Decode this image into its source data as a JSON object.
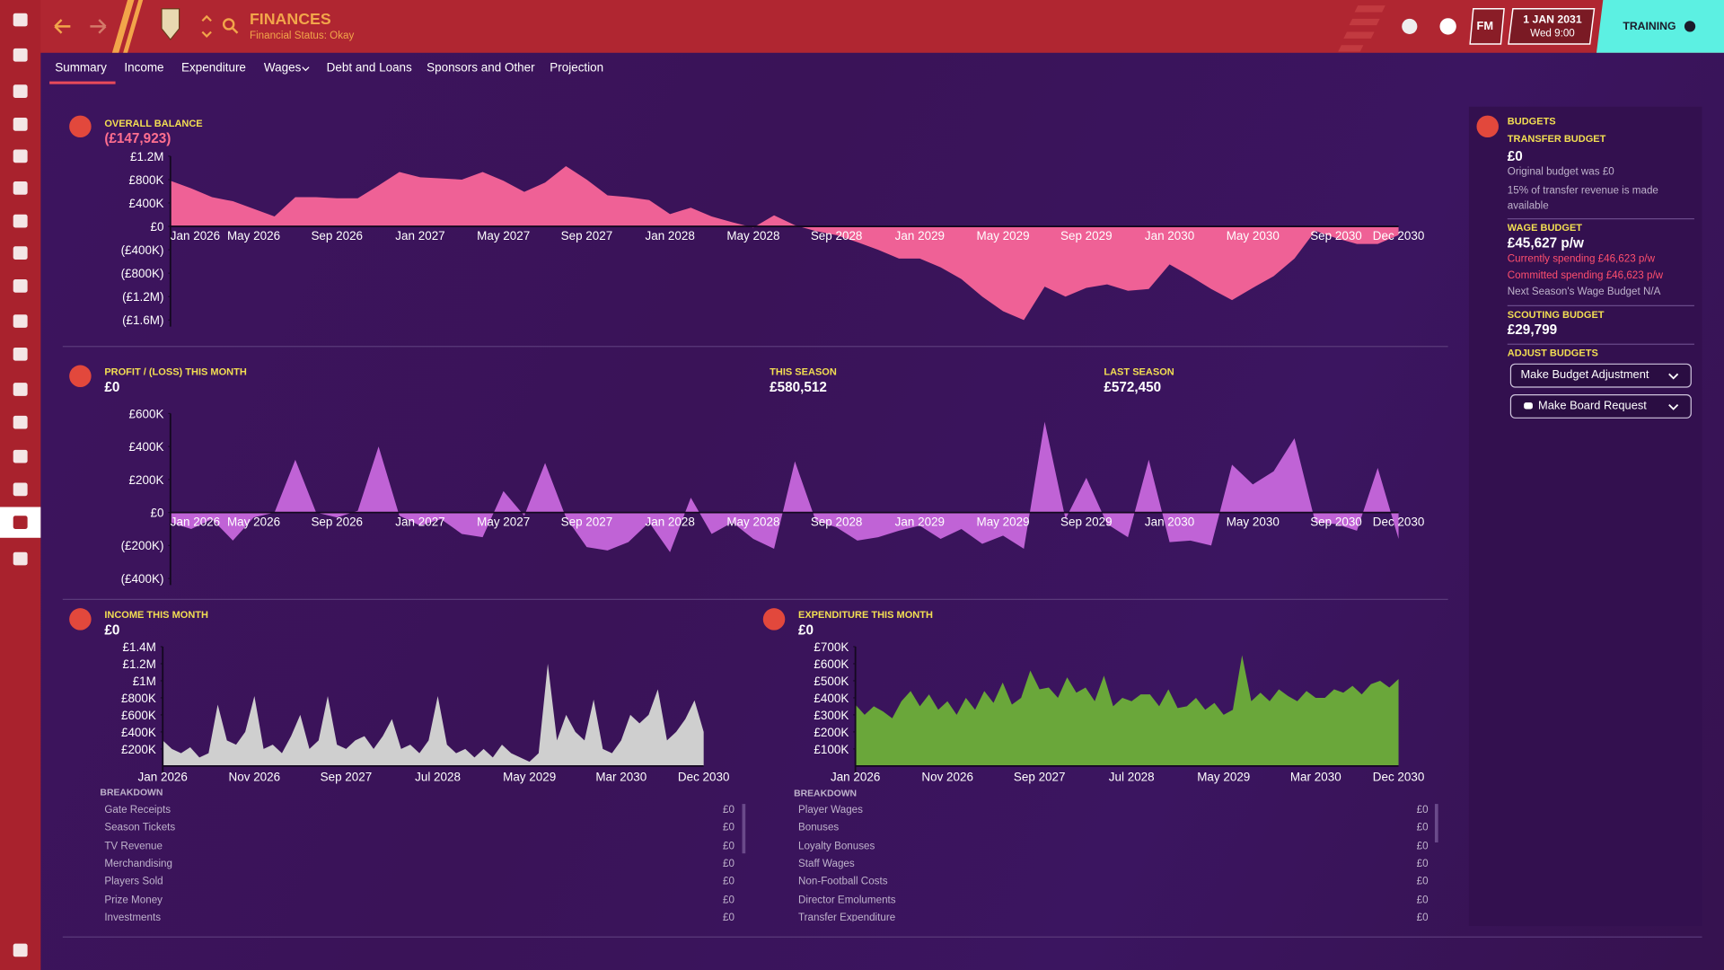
{
  "header": {
    "title": "FINANCES",
    "subtitle": "Financial Status: Okay",
    "brand": "FM",
    "date": "1 JAN 2031",
    "time": "Wed 9:00",
    "button": "TRAINING"
  },
  "tabs": [
    "Summary",
    "Income",
    "Expenditure",
    "Wages",
    "Debt and Loans",
    "Sponsors and Other",
    "Projection"
  ],
  "chart_data": [
    {
      "type": "area",
      "title": "OVERALL BALANCE",
      "subtitle": "(£147,923)",
      "color": "#ef6196",
      "grid": false,
      "categories": [
        "Jan 2026",
        null,
        null,
        null,
        "May 2026",
        null,
        null,
        null,
        "Sep 2026",
        null,
        null,
        null,
        "Jan 2027",
        null,
        null,
        null,
        "May 2027",
        null,
        null,
        null,
        "Sep 2027",
        null,
        null,
        null,
        "Jan 2028",
        null,
        null,
        null,
        "May 2028",
        null,
        null,
        null,
        "Sep 2028",
        null,
        null,
        null,
        "Jan 2029",
        null,
        null,
        null,
        "May 2029",
        null,
        null,
        null,
        "Sep 2029",
        null,
        null,
        null,
        "Jan 2030",
        null,
        null,
        null,
        "May 2030",
        null,
        null,
        null,
        "Sep 2030",
        null,
        null,
        "Dec 2030"
      ],
      "values": [
        780000,
        650000,
        500000,
        430000,
        300000,
        170000,
        500000,
        500000,
        480000,
        480000,
        700000,
        930000,
        840000,
        820000,
        800000,
        930000,
        780000,
        590000,
        750000,
        1030000,
        800000,
        530000,
        500000,
        450000,
        210000,
        320000,
        170000,
        70000,
        -20000,
        190000,
        20000,
        -80000,
        -150000,
        -270000,
        -400000,
        -550000,
        -550000,
        -700000,
        -900000,
        -1200000,
        -1450000,
        -1600000,
        -1030000,
        -1200000,
        -1050000,
        -990000,
        -1100000,
        -1070000,
        -650000,
        -850000,
        -1070000,
        -1260000,
        -1050000,
        -850000,
        -550000,
        -76000,
        -200000,
        -300000,
        -300000,
        -147923
      ],
      "ylim": [
        -1600000,
        1200000
      ],
      "yticks": [
        {
          "value": 1200000,
          "label": "£1.2M"
        },
        {
          "value": 800000,
          "label": "£800K"
        },
        {
          "value": 400000,
          "label": "£400K"
        },
        {
          "value": 0,
          "label": "£0"
        },
        {
          "value": -400000,
          "label": "(£400K)"
        },
        {
          "value": -800000,
          "label": "(£800K)"
        },
        {
          "value": -1200000,
          "label": "(£1.2M)"
        },
        {
          "value": -1600000,
          "label": "(£1.6M)"
        }
      ]
    },
    {
      "type": "area",
      "title": "PROFIT / (LOSS) THIS MONTH",
      "subtitle": "£0",
      "color": "#c063d6",
      "grid": false,
      "annotations": [
        {
          "title": "THIS SEASON",
          "text": "£580,512"
        },
        {
          "title": "LAST SEASON",
          "text": "£572,450"
        }
      ],
      "categories": [
        "Jan 2026",
        null,
        null,
        null,
        "May 2026",
        null,
        null,
        null,
        "Sep 2026",
        null,
        null,
        null,
        "Jan 2027",
        null,
        null,
        null,
        "May 2027",
        null,
        null,
        null,
        "Sep 2027",
        null,
        null,
        null,
        "Jan 2028",
        null,
        null,
        null,
        "May 2028",
        null,
        null,
        null,
        "Sep 2028",
        null,
        null,
        null,
        "Jan 2029",
        null,
        null,
        null,
        "May 2029",
        null,
        null,
        null,
        "Sep 2029",
        null,
        null,
        null,
        "Jan 2030",
        null,
        null,
        null,
        "May 2030",
        null,
        null,
        null,
        "Sep 2030",
        null,
        null,
        "Dec 2030"
      ],
      "values": [
        -60000,
        -100000,
        -40000,
        -170000,
        -30000,
        0,
        320000,
        0,
        -30000,
        10000,
        400000,
        -20000,
        -80000,
        -40000,
        -130000,
        -150000,
        130000,
        -20000,
        300000,
        -30000,
        -210000,
        -230000,
        -180000,
        -60000,
        -240000,
        90000,
        -130000,
        -60000,
        -160000,
        -220000,
        310000,
        -50000,
        -90000,
        -170000,
        -150000,
        -110000,
        -80000,
        -160000,
        -100000,
        -190000,
        -140000,
        -220000,
        550000,
        -40000,
        210000,
        -70000,
        -150000,
        320000,
        -180000,
        -170000,
        -200000,
        290000,
        170000,
        250000,
        450000,
        -60000,
        -70000,
        -110000,
        270000,
        -160000
      ],
      "ylim": [
        -400000,
        600000
      ],
      "yticks": [
        {
          "value": 600000,
          "label": "£600K"
        },
        {
          "value": 400000,
          "label": "£400K"
        },
        {
          "value": 200000,
          "label": "£200K"
        },
        {
          "value": 0,
          "label": "£0"
        },
        {
          "value": -200000,
          "label": "(£200K)"
        },
        {
          "value": -400000,
          "label": "(£400K)"
        }
      ]
    },
    {
      "type": "area",
      "title": "INCOME THIS MONTH",
      "subtitle": "£0",
      "color": "#cfcfcf",
      "grid": false,
      "categories": [
        "Jan 2026",
        null,
        null,
        null,
        null,
        null,
        null,
        null,
        null,
        null,
        "Nov 2026",
        null,
        null,
        null,
        null,
        null,
        null,
        null,
        null,
        null,
        "Sep 2027",
        null,
        null,
        null,
        null,
        null,
        null,
        null,
        null,
        null,
        "Jul 2028",
        null,
        null,
        null,
        null,
        null,
        null,
        null,
        null,
        null,
        "May 2029",
        null,
        null,
        null,
        null,
        null,
        null,
        null,
        null,
        null,
        "Mar 2030",
        null,
        null,
        null,
        null,
        null,
        null,
        null,
        null,
        "Dec 2030"
      ],
      "values": [
        300000,
        200000,
        150000,
        220000,
        100000,
        150000,
        720000,
        300000,
        250000,
        400000,
        820000,
        200000,
        250000,
        150000,
        350000,
        600000,
        200000,
        300000,
        820000,
        250000,
        200000,
        300000,
        350000,
        200000,
        350000,
        550000,
        200000,
        250000,
        150000,
        300000,
        820000,
        250000,
        150000,
        200000,
        100000,
        200000,
        100000,
        250000,
        150000,
        100000,
        50000,
        150000,
        1200000,
        300000,
        600000,
        400000,
        300000,
        780000,
        200000,
        150000,
        300000,
        600000,
        500000,
        600000,
        900000,
        300000,
        400000,
        550000,
        770000,
        400000
      ],
      "ylim": [
        0,
        1400000
      ],
      "yticks": [
        {
          "value": 1400000,
          "label": "£1.4M"
        },
        {
          "value": 1200000,
          "label": "£1.2M"
        },
        {
          "value": 1000000,
          "label": "£1M"
        },
        {
          "value": 800000,
          "label": "£800K"
        },
        {
          "value": 600000,
          "label": "£600K"
        },
        {
          "value": 400000,
          "label": "£400K"
        },
        {
          "value": 200000,
          "label": "£200K"
        }
      ]
    },
    {
      "type": "area",
      "title": "EXPENDITURE THIS MONTH",
      "subtitle": "£0",
      "color": "#6aa73a",
      "grid": false,
      "categories": [
        "Jan 2026",
        null,
        null,
        null,
        null,
        null,
        null,
        null,
        null,
        null,
        "Nov 2026",
        null,
        null,
        null,
        null,
        null,
        null,
        null,
        null,
        null,
        "Sep 2027",
        null,
        null,
        null,
        null,
        null,
        null,
        null,
        null,
        null,
        "Jul 2028",
        null,
        null,
        null,
        null,
        null,
        null,
        null,
        null,
        null,
        "May 2029",
        null,
        null,
        null,
        null,
        null,
        null,
        null,
        null,
        null,
        "Mar 2030",
        null,
        null,
        null,
        null,
        null,
        null,
        null,
        null,
        "Dec 2030"
      ],
      "values": [
        360000,
        300000,
        350000,
        320000,
        280000,
        380000,
        440000,
        350000,
        420000,
        330000,
        380000,
        300000,
        400000,
        330000,
        440000,
        370000,
        490000,
        360000,
        400000,
        560000,
        450000,
        460000,
        400000,
        520000,
        430000,
        460000,
        380000,
        530000,
        350000,
        400000,
        380000,
        420000,
        420000,
        350000,
        450000,
        340000,
        350000,
        400000,
        330000,
        370000,
        300000,
        330000,
        650000,
        380000,
        430000,
        380000,
        450000,
        410000,
        380000,
        440000,
        400000,
        400000,
        450000,
        430000,
        470000,
        420000,
        480000,
        500000,
        460000,
        510000
      ],
      "ylim": [
        0,
        700000
      ],
      "yticks": [
        {
          "value": 700000,
          "label": "£700K"
        },
        {
          "value": 600000,
          "label": "£600K"
        },
        {
          "value": 500000,
          "label": "£500K"
        },
        {
          "value": 400000,
          "label": "£400K"
        },
        {
          "value": 300000,
          "label": "£300K"
        },
        {
          "value": 200000,
          "label": "£200K"
        },
        {
          "value": 100000,
          "label": "£100K"
        }
      ]
    }
  ],
  "income_breakdown": {
    "title": "BREAKDOWN",
    "rows": [
      [
        "Gate Receipts",
        "£0"
      ],
      [
        "Season Tickets",
        "£0"
      ],
      [
        "TV Revenue",
        "£0"
      ],
      [
        "Merchandising",
        "£0"
      ],
      [
        "Players Sold",
        "£0"
      ],
      [
        "Prize Money",
        "£0"
      ],
      [
        "Investments",
        "£0"
      ]
    ]
  },
  "expenditure_breakdown": {
    "title": "BREAKDOWN",
    "rows": [
      [
        "Player Wages",
        "£0"
      ],
      [
        "Bonuses",
        "£0"
      ],
      [
        "Loyalty Bonuses",
        "£0"
      ],
      [
        "Staff Wages",
        "£0"
      ],
      [
        "Non-Football Costs",
        "£0"
      ],
      [
        "Director Emoluments",
        "£0"
      ],
      [
        "Transfer Expenditure",
        "£0"
      ]
    ]
  },
  "budgets": {
    "title": "BUDGETS",
    "transfer_title": "TRANSFER BUDGET",
    "transfer_value": "£0",
    "transfer_notes": [
      "Original budget was £0",
      "15% of transfer revenue is made available"
    ],
    "wage_title": "WAGE BUDGET",
    "wage_value": "£45,627 p/w",
    "wage_notes": [
      "Currently spending £46,623 p/w",
      "Committed spending £46,623 p/w"
    ],
    "wage_next": "Next Season's Wage Budget N/A",
    "scouting_title": "SCOUTING BUDGET",
    "scouting_value": "£29,799",
    "adjust_title": "ADJUST BUDGETS",
    "buttons": [
      "Make Budget Adjustment",
      "Make Board Request"
    ]
  }
}
